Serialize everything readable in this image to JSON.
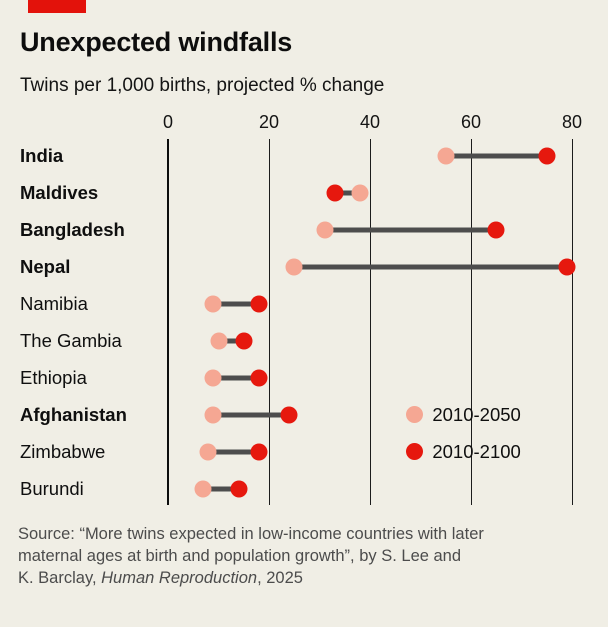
{
  "meta": {
    "brand_tag_color": "#e3120b",
    "background_color": "#f0eee5",
    "connector_color": "#4d4d4d"
  },
  "header": {
    "title": "Unexpected windfalls",
    "subtitle": "Twins per 1,000 births, projected % change"
  },
  "chart_data": {
    "type": "dumbbell",
    "title": "Unexpected windfalls",
    "subtitle": "Twins per 1,000 births, projected % change",
    "x_axis": {
      "ticks": [
        0,
        20,
        40,
        60,
        80
      ],
      "range": [
        0,
        80
      ],
      "position": "top"
    },
    "grid": "vertical",
    "categories": [
      "India",
      "Maldives",
      "Bangladesh",
      "Nepal",
      "Namibia",
      "The Gambia",
      "Ethiopia",
      "Afghanistan",
      "Zimbabwe",
      "Burundi"
    ],
    "bold_categories": [
      "India",
      "Maldives",
      "Bangladesh",
      "Nepal",
      "Afghanistan"
    ],
    "series": [
      {
        "name": "2010-2050",
        "color": "#f5a793",
        "values": [
          55,
          38,
          31,
          25,
          9,
          10,
          9,
          9,
          8,
          7
        ]
      },
      {
        "name": "2010-2100",
        "color": "#e6180e",
        "values": [
          75,
          33,
          65,
          79,
          18,
          15,
          18,
          24,
          18,
          14
        ]
      }
    ],
    "legend": {
      "position": "inside-right",
      "items": [
        {
          "label": "2010-2050",
          "color": "#f5a793"
        },
        {
          "label": "2010-2100",
          "color": "#e6180e"
        }
      ]
    }
  },
  "source": {
    "line1": "Source: “More twins expected in low-income countries with later",
    "line2": "maternal ages at birth and population growth”, by S. Lee and",
    "line3_prefix": "K. Barclay, ",
    "line3_italic": "Human Reproduction",
    "line3_suffix": ", 2025"
  }
}
